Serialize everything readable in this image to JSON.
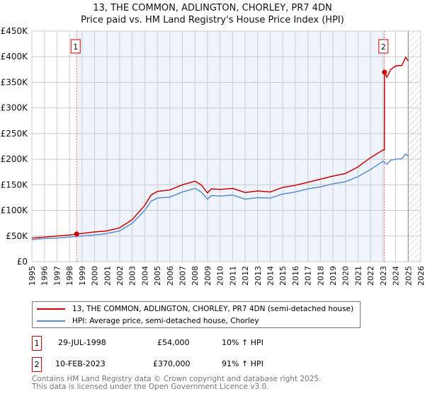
{
  "title": "13, THE COMMON, ADLINGTON, CHORLEY, PR7 4DN",
  "subtitle": "Price paid vs. HM Land Registry's House Price Index (HPI)",
  "chart_data": {
    "type": "line",
    "xlim": [
      1995,
      2026
    ],
    "ylim": [
      0,
      450000
    ],
    "yticks": [
      {
        "v": 0,
        "label": "£0"
      },
      {
        "v": 50000,
        "label": "£50K"
      },
      {
        "v": 100000,
        "label": "£100K"
      },
      {
        "v": 150000,
        "label": "£150K"
      },
      {
        "v": 200000,
        "label": "£200K"
      },
      {
        "v": 250000,
        "label": "£250K"
      },
      {
        "v": 300000,
        "label": "£300K"
      },
      {
        "v": 350000,
        "label": "£350K"
      },
      {
        "v": 400000,
        "label": "£400K"
      },
      {
        "v": 450000,
        "label": "£450K"
      }
    ],
    "xticks": [
      "1995",
      "1996",
      "1997",
      "1998",
      "1999",
      "2000",
      "2001",
      "2002",
      "2003",
      "2004",
      "2005",
      "2006",
      "2007",
      "2008",
      "2009",
      "2010",
      "2011",
      "2012",
      "2013",
      "2014",
      "2015",
      "2016",
      "2017",
      "2018",
      "2019",
      "2020",
      "2021",
      "2022",
      "2023",
      "2024",
      "2025",
      "2026"
    ],
    "series": [
      {
        "name": "13, THE COMMON, ADLINGTON, CHORLEY, PR7 4DN (semi-detached house)",
        "color": "#cc0000",
        "x": [
          1995,
          1996,
          1997,
          1998,
          1998.57,
          1999,
          2000,
          2001,
          2002,
          2003,
          2004,
          2004.5,
          2005,
          2006,
          2007,
          2008,
          2008.5,
          2009,
          2009.3,
          2010,
          2011,
          2012,
          2013,
          2014,
          2015,
          2016,
          2017,
          2018,
          2019,
          2020,
          2021,
          2022,
          2023,
          2023.1,
          2023.11,
          2023.3,
          2023.6,
          2024,
          2024.5,
          2024.8,
          2025
        ],
        "y": [
          46000,
          48000,
          50000,
          52000,
          54000,
          55000,
          58000,
          60000,
          66000,
          82000,
          110000,
          130000,
          137000,
          140000,
          150000,
          157000,
          150000,
          134000,
          142000,
          141000,
          143000,
          135000,
          138000,
          136000,
          145000,
          149000,
          155000,
          161000,
          167000,
          172000,
          185000,
          203000,
          218000,
          218000,
          370000,
          360000,
          375000,
          382000,
          383000,
          399000,
          392000
        ]
      },
      {
        "name": "HPI: Average price, semi-detached house, Chorley",
        "color": "#5b8fd4",
        "x": [
          1995,
          1996,
          1997,
          1998,
          1999,
          2000,
          2001,
          2002,
          2003,
          2004,
          2004.5,
          2005,
          2006,
          2007,
          2008,
          2008.5,
          2009,
          2009.3,
          2010,
          2011,
          2012,
          2013,
          2014,
          2015,
          2016,
          2017,
          2018,
          2019,
          2020,
          2021,
          2022,
          2023,
          2023.3,
          2023.6,
          2024,
          2024.5,
          2024.8,
          2025
        ],
        "y": [
          43000,
          45000,
          46000,
          48000,
          50000,
          52000,
          55000,
          60000,
          75000,
          100000,
          118000,
          124000,
          126000,
          136000,
          143000,
          136000,
          122000,
          129000,
          128000,
          130000,
          122000,
          125000,
          124000,
          132000,
          136000,
          142000,
          146000,
          152000,
          156000,
          166000,
          180000,
          196000,
          190000,
          198000,
          200000,
          201000,
          210000,
          206000
        ]
      }
    ],
    "sales": [
      {
        "id": "1",
        "date": "29-JUL-1998",
        "x": 1998.57,
        "price": 54000,
        "price_label": "£54,000",
        "hpi": "10% ↑ HPI"
      },
      {
        "id": "2",
        "date": "10-FEB-2023",
        "x": 2023.11,
        "price": 370000,
        "price_label": "£370,000",
        "hpi": "91% ↑ HPI"
      }
    ],
    "shaded_range": [
      1998.57,
      2023.11
    ],
    "forecast_from": 2025
  },
  "footer": [
    "Contains HM Land Registry data © Crown copyright and database right 2025.",
    "This data is licensed under the Open Government Licence v3.0."
  ]
}
